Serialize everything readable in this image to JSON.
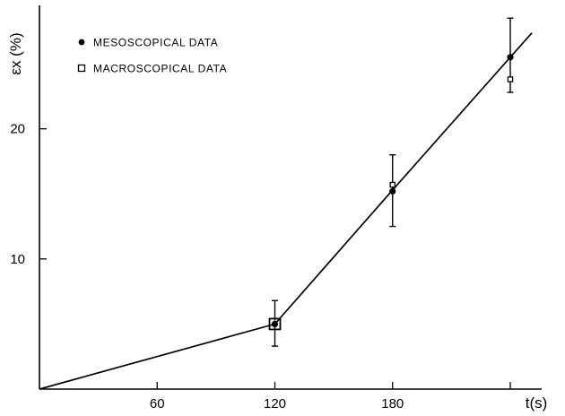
{
  "chart_data": {
    "type": "line",
    "title": "",
    "xlabel": "t(s)",
    "ylabel": "εx (%)",
    "xlim": [
      0,
      240
    ],
    "ylim": [
      0,
      29
    ],
    "x_ticks": [
      60,
      120,
      180,
      240
    ],
    "x_tick_labels": [
      "60",
      "120",
      "180"
    ],
    "y_ticks": [
      10,
      20
    ],
    "y_tick_labels": [
      "10",
      "20"
    ],
    "grid": false,
    "legend_position": "top-left",
    "line": {
      "x": [
        0,
        120,
        180,
        240
      ],
      "y": [
        0,
        5.0,
        15.3,
        25.5
      ]
    },
    "series": [
      {
        "name": "MESOSCOPICAL DATA",
        "marker": "filled-circle",
        "x": [
          120,
          180,
          240
        ],
        "y": [
          5.0,
          15.2,
          25.5
        ],
        "error_low": [
          3.3,
          12.5,
          22.8
        ],
        "error_high": [
          6.8,
          18.0,
          28.5
        ]
      },
      {
        "name": "MACROSCOPICAL DATA",
        "marker": "open-square",
        "x": [
          120,
          180,
          240
        ],
        "y": [
          5.0,
          15.7,
          23.8
        ],
        "error_low": [],
        "error_high": []
      }
    ]
  }
}
